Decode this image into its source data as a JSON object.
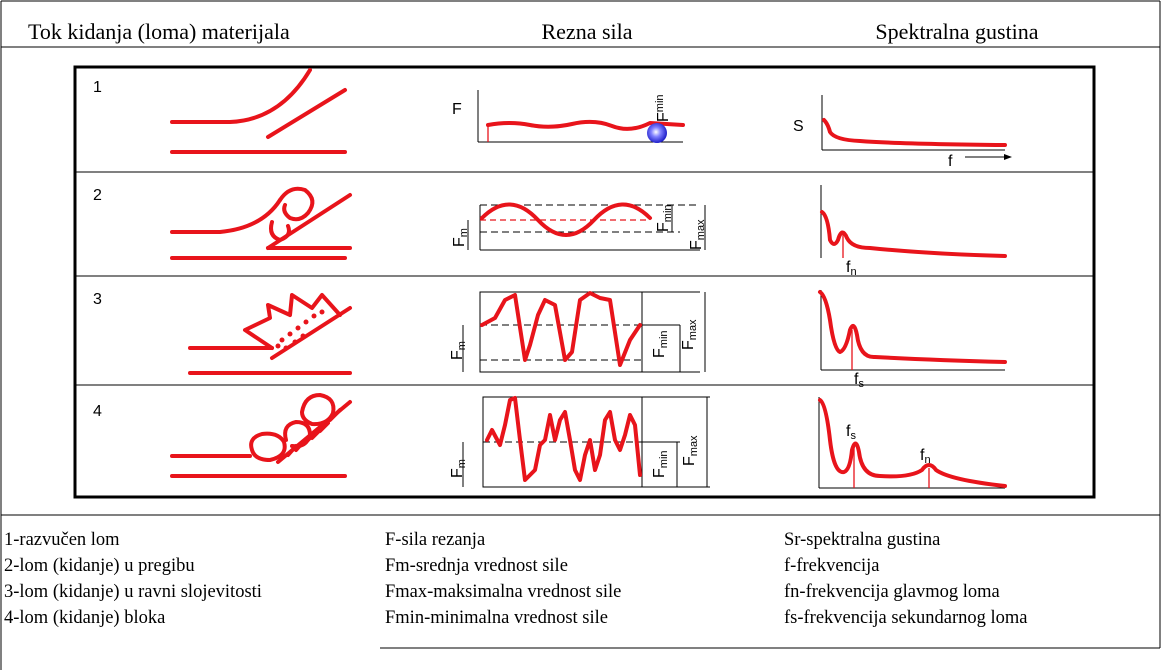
{
  "header": {
    "columns": [
      "Tok kidanja (loma) materijala",
      "Rezna sila",
      "Spektralna gustina"
    ]
  },
  "rows": [
    {
      "number": "1",
      "force_labels": [
        {
          "main": "F"
        },
        {
          "main": "F",
          "sub": "min"
        }
      ],
      "spectrum_labels": [
        {
          "main": "S"
        },
        {
          "main": "f"
        }
      ]
    },
    {
      "number": "2",
      "force_labels": [
        {
          "main": "F",
          "sub": "m"
        },
        {
          "main": "F",
          "sub": "min"
        },
        {
          "main": "F",
          "sub": "max"
        }
      ],
      "spectrum_labels": [
        {
          "main": "f",
          "sub": "n"
        }
      ]
    },
    {
      "number": "3",
      "force_labels": [
        {
          "main": "F",
          "sub": "m"
        },
        {
          "main": "F",
          "sub": "min"
        },
        {
          "main": "F",
          "sub": "max"
        }
      ],
      "spectrum_labels": [
        {
          "main": "f",
          "sub": "s"
        }
      ]
    },
    {
      "number": "4",
      "force_labels": [
        {
          "main": "F",
          "sub": "m"
        },
        {
          "main": "F",
          "sub": "min"
        },
        {
          "main": "F",
          "sub": "max"
        }
      ],
      "spectrum_labels": [
        {
          "main": "f",
          "sub": "s"
        },
        {
          "main": "f",
          "sub": "n"
        }
      ]
    }
  ],
  "legend": {
    "columns": [
      [
        "1-razvučen lom",
        "2-lom (kidanje) u pregibu",
        "3-lom (kidanje) u ravni slojevitosti",
        "4-lom (kidanje) bloka"
      ],
      [
        "F-sila rezanja",
        "Fm-srednja vrednost sile",
        "Fmax-maksimalna vrednost sile",
        "Fmin-minimalna vrednost sile"
      ],
      [
        "Sr-spektralna gustina",
        "f-frekvencija",
        "fn-frekvencija glavmog loma",
        "fs-frekvencija sekundarnog loma"
      ]
    ]
  }
}
